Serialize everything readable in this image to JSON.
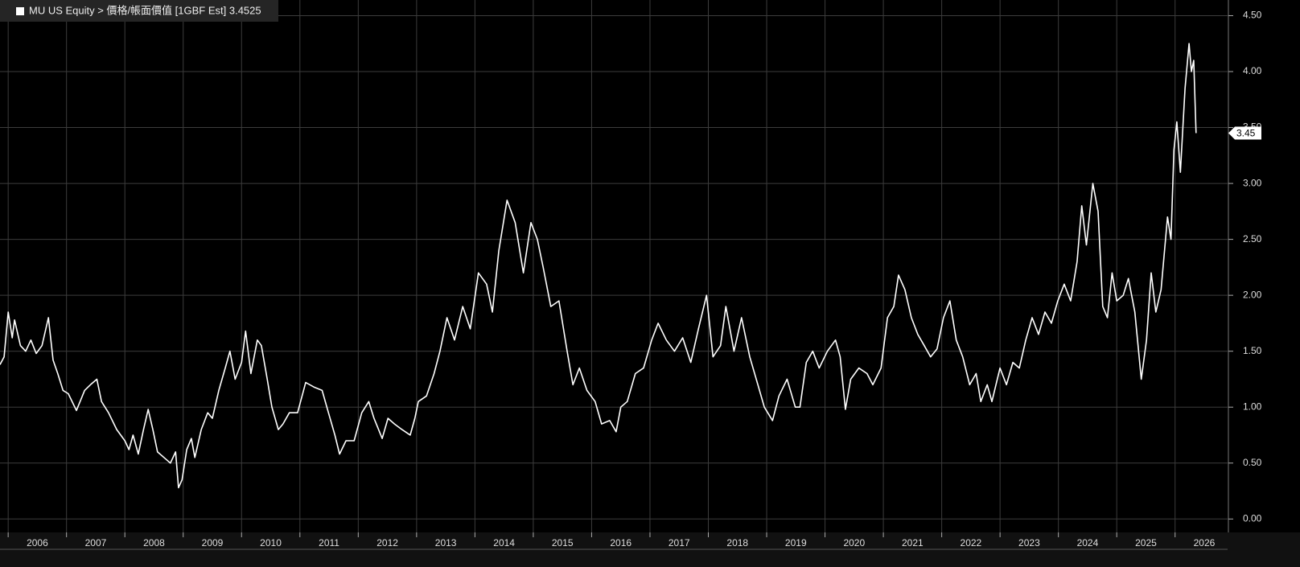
{
  "chart_data": {
    "type": "line",
    "x": [
      2005.86,
      2005.93,
      2006.0,
      2006.07,
      2006.11,
      2006.21,
      2006.3,
      2006.39,
      2006.48,
      2006.58,
      2006.69,
      2006.77,
      2006.85,
      2006.94,
      2007.03,
      2007.17,
      2007.31,
      2007.41,
      2007.52,
      2007.6,
      2007.72,
      2007.86,
      2008.0,
      2008.07,
      2008.14,
      2008.23,
      2008.32,
      2008.4,
      2008.48,
      2008.56,
      2008.67,
      2008.78,
      2008.87,
      2008.92,
      2008.98,
      2009.06,
      2009.14,
      2009.2,
      2009.31,
      2009.42,
      2009.5,
      2009.61,
      2009.72,
      2009.8,
      2009.89,
      2010.0,
      2010.07,
      2010.16,
      2010.27,
      2010.34,
      2010.44,
      2010.52,
      2010.63,
      2010.71,
      2010.82,
      2010.96,
      2011.1,
      2011.24,
      2011.38,
      2011.49,
      2011.6,
      2011.68,
      2011.79,
      2011.93,
      2012.06,
      2012.18,
      2012.27,
      2012.41,
      2012.51,
      2012.62,
      2012.75,
      2012.89,
      2012.97,
      2013.03,
      2013.17,
      2013.3,
      2013.4,
      2013.52,
      2013.65,
      2013.79,
      2013.92,
      2014.06,
      2014.2,
      2014.3,
      2014.41,
      2014.55,
      2014.69,
      2014.83,
      2014.96,
      2015.07,
      2015.17,
      2015.3,
      2015.44,
      2015.58,
      2015.68,
      2015.79,
      2015.92,
      2016.06,
      2016.17,
      2016.31,
      2016.42,
      2016.5,
      2016.61,
      2016.75,
      2016.89,
      2017.03,
      2017.14,
      2017.28,
      2017.42,
      2017.56,
      2017.7,
      2017.83,
      2017.97,
      2018.08,
      2018.21,
      2018.3,
      2018.44,
      2018.57,
      2018.71,
      2018.85,
      2018.96,
      2019.1,
      2019.21,
      2019.35,
      2019.49,
      2019.57,
      2019.68,
      2019.79,
      2019.9,
      2020.04,
      2020.18,
      2020.26,
      2020.35,
      2020.44,
      2020.58,
      2020.72,
      2020.82,
      2020.96,
      2021.07,
      2021.18,
      2021.26,
      2021.37,
      2021.48,
      2021.59,
      2021.7,
      2021.81,
      2021.92,
      2022.03,
      2022.14,
      2022.25,
      2022.36,
      2022.48,
      2022.59,
      2022.67,
      2022.78,
      2022.86,
      2023.0,
      2023.11,
      2023.22,
      2023.33,
      2023.44,
      2023.55,
      2023.66,
      2023.77,
      2023.88,
      2023.99,
      2024.1,
      2024.21,
      2024.32,
      2024.4,
      2024.48,
      2024.59,
      2024.68,
      2024.76,
      2024.84,
      2024.92,
      2025.0,
      2025.11,
      2025.2,
      2025.31,
      2025.42,
      2025.51,
      2025.59,
      2025.67,
      2025.76,
      2025.87,
      2025.93,
      2025.98,
      2026.03,
      2026.09,
      2026.17,
      2026.24,
      2026.28,
      2026.32,
      2026.36
    ],
    "series": [
      {
        "name": "MU US Equity > 價格/帳面價值 [1GBF Est] 3.4525",
        "color": "#ffffff",
        "values": [
          1.38,
          1.45,
          1.85,
          1.62,
          1.78,
          1.55,
          1.5,
          1.6,
          1.48,
          1.55,
          1.8,
          1.42,
          1.3,
          1.15,
          1.12,
          0.97,
          1.15,
          1.2,
          1.25,
          1.05,
          0.95,
          0.8,
          0.7,
          0.62,
          0.75,
          0.58,
          0.8,
          0.98,
          0.8,
          0.6,
          0.55,
          0.5,
          0.6,
          0.28,
          0.35,
          0.62,
          0.72,
          0.55,
          0.8,
          0.95,
          0.9,
          1.15,
          1.35,
          1.5,
          1.25,
          1.4,
          1.68,
          1.3,
          1.6,
          1.55,
          1.25,
          1.0,
          0.8,
          0.85,
          0.95,
          0.95,
          1.22,
          1.18,
          1.15,
          0.95,
          0.75,
          0.58,
          0.7,
          0.7,
          0.95,
          1.05,
          0.9,
          0.72,
          0.9,
          0.85,
          0.8,
          0.75,
          0.9,
          1.05,
          1.1,
          1.3,
          1.5,
          1.8,
          1.6,
          1.9,
          1.7,
          2.2,
          2.1,
          1.85,
          2.4,
          2.85,
          2.65,
          2.2,
          2.65,
          2.5,
          2.25,
          1.9,
          1.95,
          1.5,
          1.2,
          1.35,
          1.15,
          1.05,
          0.85,
          0.88,
          0.78,
          1.0,
          1.05,
          1.3,
          1.35,
          1.6,
          1.75,
          1.6,
          1.5,
          1.62,
          1.4,
          1.7,
          2.0,
          1.45,
          1.55,
          1.9,
          1.5,
          1.8,
          1.45,
          1.2,
          1.0,
          0.88,
          1.1,
          1.25,
          1.0,
          1.0,
          1.4,
          1.5,
          1.35,
          1.5,
          1.6,
          1.45,
          0.98,
          1.25,
          1.35,
          1.3,
          1.2,
          1.35,
          1.8,
          1.9,
          2.18,
          2.05,
          1.8,
          1.65,
          1.55,
          1.45,
          1.52,
          1.8,
          1.95,
          1.6,
          1.45,
          1.2,
          1.3,
          1.05,
          1.2,
          1.05,
          1.35,
          1.2,
          1.4,
          1.35,
          1.6,
          1.8,
          1.65,
          1.85,
          1.75,
          1.95,
          2.1,
          1.95,
          2.3,
          2.8,
          2.45,
          3.0,
          2.75,
          1.9,
          1.8,
          2.2,
          1.95,
          2.0,
          2.15,
          1.85,
          1.25,
          1.6,
          2.2,
          1.85,
          2.05,
          2.7,
          2.5,
          3.3,
          3.55,
          3.1,
          3.85,
          4.25,
          4.0,
          4.1,
          3.45
        ]
      }
    ],
    "last_value": 3.45,
    "xlim": [
      2005.86,
      2026.9
    ],
    "xticks": [
      2006,
      2007,
      2008,
      2009,
      2010,
      2011,
      2012,
      2013,
      2014,
      2015,
      2016,
      2017,
      2018,
      2019,
      2020,
      2021,
      2022,
      2023,
      2024,
      2025,
      2026
    ],
    "ylim": [
      -0.12,
      4.64
    ],
    "yticks": [
      {
        "value": 0,
        "label": "0.00"
      },
      {
        "value": 0.5,
        "label": "0.50"
      },
      {
        "value": 1,
        "label": "1.00"
      },
      {
        "value": 1.5,
        "label": "1.50"
      },
      {
        "value": 2,
        "label": "2.00"
      },
      {
        "value": 2.5,
        "label": "2.50"
      },
      {
        "value": 3,
        "label": "3.00"
      },
      {
        "value": 3.5,
        "label": "3.50"
      },
      {
        "value": 4,
        "label": "4.00"
      },
      {
        "value": 4.5,
        "label": "4.50"
      }
    ],
    "grid": true
  }
}
